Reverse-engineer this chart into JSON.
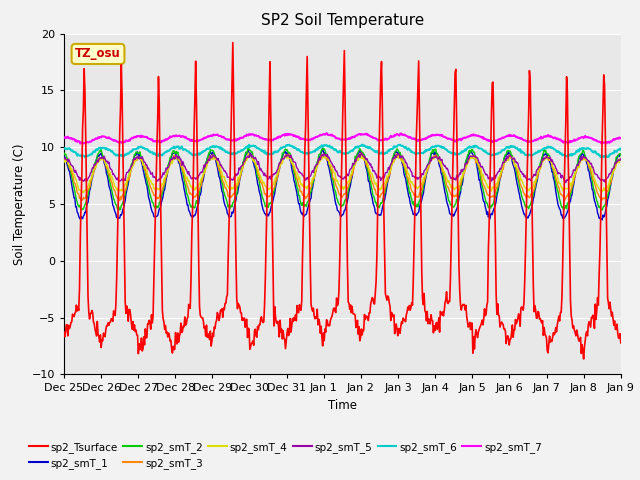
{
  "title": "SP2 Soil Temperature",
  "ylabel": "Soil Temperature (C)",
  "xlabel": "Time",
  "ylim": [
    -10,
    20
  ],
  "annotation_text": "TZ_osu",
  "annotation_color": "#cc0000",
  "annotation_bg": "#ffffcc",
  "annotation_border": "#ccaa00",
  "xtick_labels": [
    "Dec 25",
    "Dec 26",
    "Dec 27",
    "Dec 28",
    "Dec 29",
    "Dec 30",
    "Dec 31",
    "Jan 1",
    "Jan 2",
    "Jan 3",
    "Jan 4",
    "Jan 5",
    "Jan 6",
    "Jan 7",
    "Jan 8",
    "Jan 9"
  ],
  "series_colors": {
    "sp2_Tsurface": "#ff0000",
    "sp2_smT_1": "#0000cc",
    "sp2_smT_2": "#00cc00",
    "sp2_smT_3": "#ff8800",
    "sp2_smT_4": "#dddd00",
    "sp2_smT_5": "#9900aa",
    "sp2_smT_6": "#00cccc",
    "sp2_smT_7": "#ff00ff"
  },
  "bg_color": "#e8e8e8",
  "grid_color": "#ffffff",
  "n_days": 15,
  "pts_per_day": 48
}
